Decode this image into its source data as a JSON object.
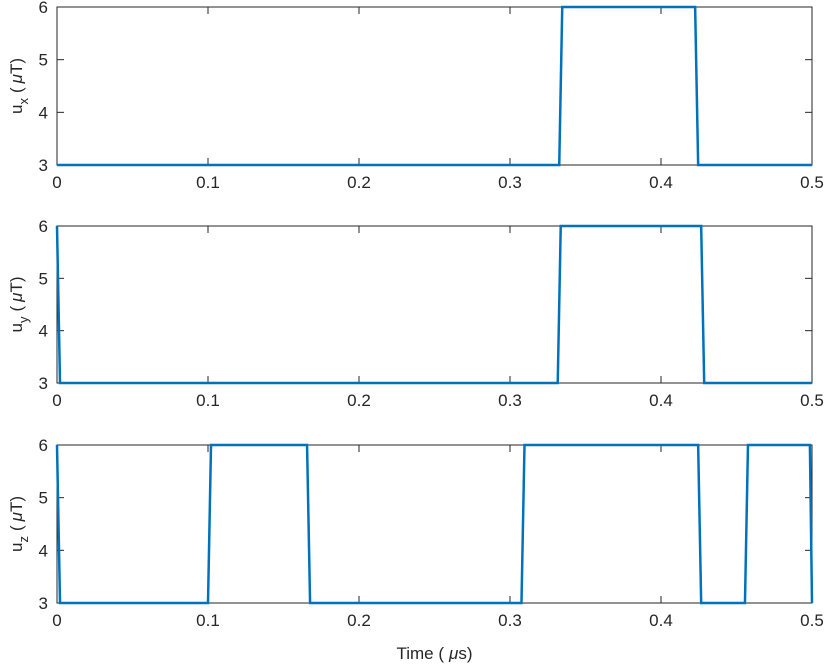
{
  "chart_data": [
    {
      "type": "line",
      "ylabel": "u_x ( μT)",
      "ylabel_main": "u",
      "ylabel_sub": "x",
      "ylabel_open": "(",
      "ylabel_mu": "μ",
      "ylabel_unit": "T)",
      "xlim": [
        0,
        0.5
      ],
      "ylim": [
        3,
        6
      ],
      "xticks": [
        "0",
        "0.1",
        "0.2",
        "0.3",
        "0.4",
        "0.5"
      ],
      "yticks": [
        "3",
        "4",
        "5",
        "6"
      ],
      "grid": false,
      "color": "#0072BD",
      "x": [
        0,
        0.3326,
        0.3346,
        0.4226,
        0.4246,
        0.5
      ],
      "y": [
        3,
        3,
        6,
        6,
        3,
        3
      ]
    },
    {
      "type": "line",
      "ylabel": "u_y ( μT)",
      "ylabel_main": "u",
      "ylabel_sub": "y",
      "ylabel_open": "(",
      "ylabel_mu": "μ",
      "ylabel_unit": "T)",
      "xlim": [
        0,
        0.5
      ],
      "ylim": [
        3,
        6
      ],
      "xticks": [
        "0",
        "0.1",
        "0.2",
        "0.3",
        "0.4",
        "0.5"
      ],
      "yticks": [
        "3",
        "4",
        "5",
        "6"
      ],
      "grid": false,
      "color": "#0072BD",
      "x": [
        0,
        0.002,
        0.3316,
        0.3336,
        0.4266,
        0.4286,
        0.5
      ],
      "y": [
        6,
        3,
        3,
        6,
        6,
        3,
        3
      ]
    },
    {
      "type": "line",
      "ylabel": "u_z ( μT)",
      "ylabel_main": "u",
      "ylabel_sub": "z",
      "ylabel_open": "(",
      "ylabel_mu": "μ",
      "ylabel_unit": "T)",
      "xlabel": "Time ( μs)",
      "xlabel_prefix": "Time (",
      "xlabel_mu": "μ",
      "xlabel_suffix": "s)",
      "xlim": [
        0,
        0.5
      ],
      "ylim": [
        3,
        6
      ],
      "xticks": [
        "0",
        "0.1",
        "0.2",
        "0.3",
        "0.4",
        "0.5"
      ],
      "yticks": [
        "3",
        "4",
        "5",
        "6"
      ],
      "grid": false,
      "color": "#0072BD",
      "x": [
        0,
        0.002,
        0.1,
        0.102,
        0.1656,
        0.1676,
        0.3076,
        0.3096,
        0.4246,
        0.4266,
        0.4556,
        0.4576,
        0.4986,
        0.5
      ],
      "y": [
        6,
        3,
        3,
        6,
        6,
        3,
        3,
        6,
        6,
        3,
        3,
        6,
        6,
        3
      ]
    }
  ]
}
